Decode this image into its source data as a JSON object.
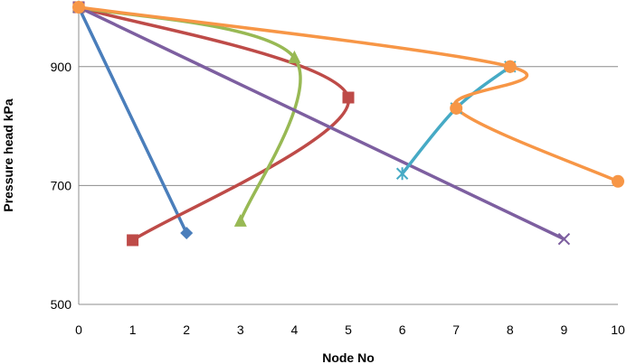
{
  "chart_data": {
    "type": "line",
    "title": "",
    "xlabel": "Node No",
    "ylabel": "Pressure head kPa",
    "xlim": [
      0,
      10
    ],
    "ylim": [
      500,
      1000
    ],
    "x_ticks": [
      0,
      1,
      2,
      3,
      4,
      5,
      6,
      7,
      8,
      9,
      10
    ],
    "y_ticks": [
      500,
      700,
      900
    ],
    "grid": "horizontal",
    "smooth": true,
    "legend": "none",
    "series": [
      {
        "color": "#4a7ebb",
        "marker": "diamond",
        "points": [
          [
            0,
            1000
          ],
          [
            2,
            620
          ]
        ]
      },
      {
        "color": "#be4b48",
        "marker": "square",
        "points": [
          [
            0,
            1000
          ],
          [
            5,
            848
          ],
          [
            1,
            608
          ]
        ]
      },
      {
        "color": "#98b954",
        "marker": "triangle",
        "points": [
          [
            0,
            1000
          ],
          [
            4,
            915
          ],
          [
            3,
            640
          ]
        ]
      },
      {
        "color": "#7d5fa0",
        "marker": "x",
        "points": [
          [
            0,
            1000
          ],
          [
            9,
            610
          ]
        ]
      },
      {
        "color": "#46aac5",
        "marker": "star",
        "points": [
          [
            8,
            900
          ],
          [
            7,
            830
          ],
          [
            6,
            720
          ]
        ]
      },
      {
        "color": "#f79646",
        "marker": "circle",
        "points": [
          [
            0,
            1000
          ],
          [
            8,
            900
          ],
          [
            7,
            830
          ],
          [
            10,
            707
          ]
        ]
      }
    ]
  }
}
